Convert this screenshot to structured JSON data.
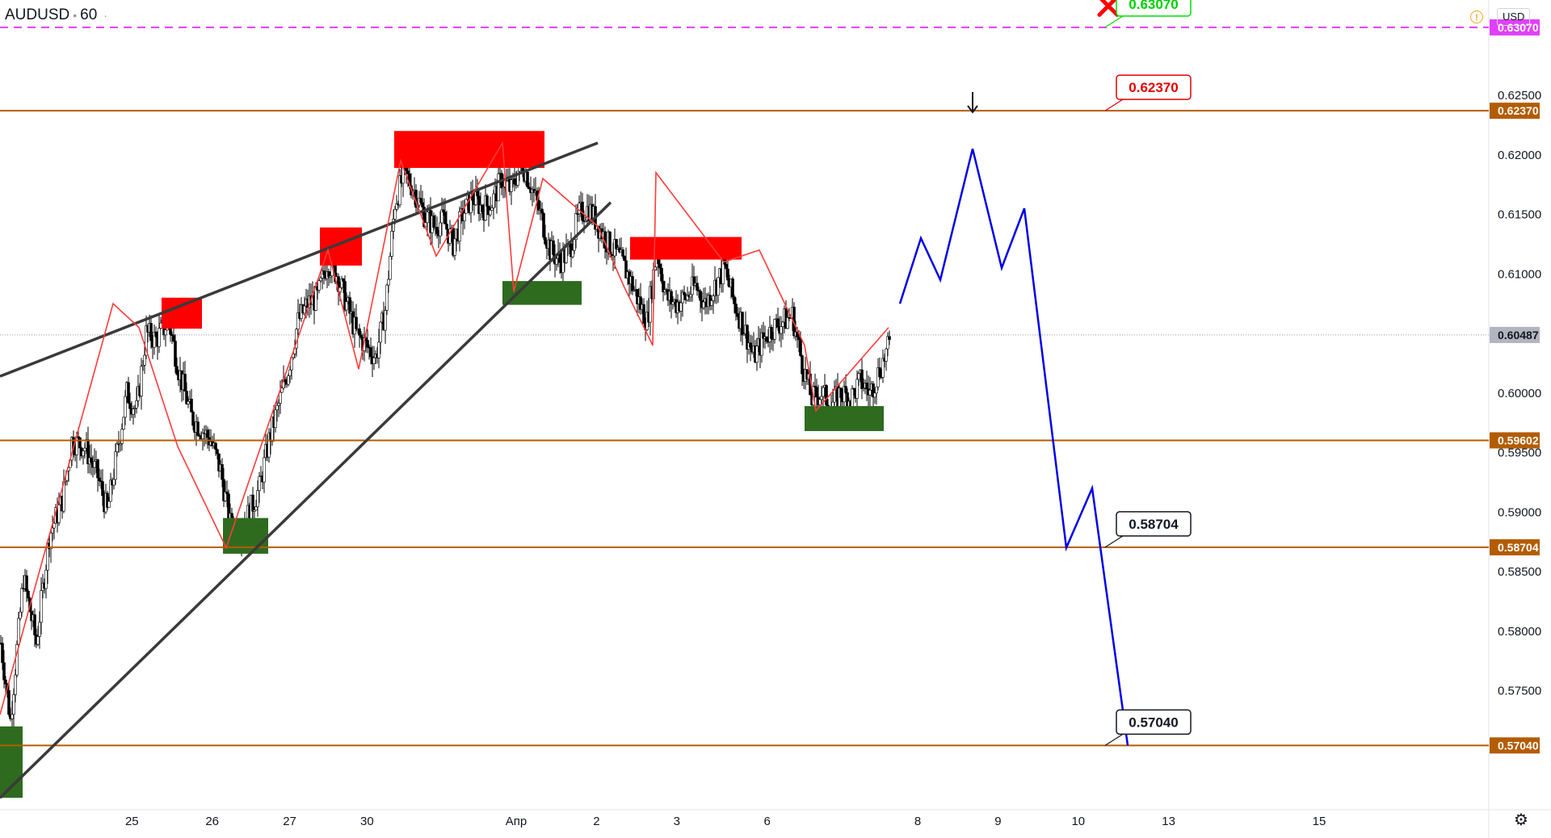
{
  "header": {
    "symbol": "AUDUSD",
    "interval": "60",
    "currency": "USD",
    "warning_icon": "alert-circle-icon",
    "settings_icon": "gear-icon"
  },
  "chart_data": {
    "type": "candlestick",
    "symbol": "AUDUSD",
    "interval": "60",
    "ylim": [
      0.565,
      0.633
    ],
    "y_ticks": [
      "0.57500",
      "0.58000",
      "0.58500",
      "0.59000",
      "0.59500",
      "0.60000",
      "0.61000",
      "0.61500",
      "0.62000",
      "0.62500"
    ],
    "x_ticks": [
      {
        "label": "25",
        "bar": 92
      },
      {
        "label": "26",
        "bar": 148
      },
      {
        "label": "27",
        "bar": 202
      },
      {
        "label": "30",
        "bar": 256
      },
      {
        "label": "Апр",
        "bar": 360
      },
      {
        "label": "2",
        "bar": 416
      },
      {
        "label": "3",
        "bar": 472
      },
      {
        "label": "6",
        "bar": 535
      },
      {
        "label": "8",
        "bar": 640
      },
      {
        "label": "9",
        "bar": 696
      },
      {
        "label": "10",
        "bar": 752
      },
      {
        "label": "13",
        "bar": 815
      },
      {
        "label": "15",
        "bar": 920
      }
    ],
    "current_price": "0.60487",
    "current_price_value": 0.60487,
    "horizontal_levels": [
      {
        "value": 0.6307,
        "label": "0.63070",
        "color": "#e040fb",
        "style": "dashed"
      },
      {
        "value": 0.6237,
        "label": "0.62370",
        "color": "#b35c00",
        "style": "solid"
      },
      {
        "value": 0.59602,
        "label": "0.59602",
        "color": "#b35c00",
        "style": "solid"
      },
      {
        "value": 0.58704,
        "label": "0.58704",
        "color": "#b35c00",
        "style": "solid"
      },
      {
        "value": 0.5704,
        "label": "0.57040",
        "color": "#b35c00",
        "style": "solid"
      }
    ],
    "callouts": [
      {
        "label": "0.63070",
        "value": 0.6307,
        "color": "#00e000",
        "text_color": "#00d000"
      },
      {
        "label": "0.62370",
        "value": 0.6237,
        "color": "#e00000",
        "text_color": "#e00000"
      },
      {
        "label": "0.58704",
        "value": 0.58704,
        "color": "#131722",
        "text_color": "#131722"
      },
      {
        "label": "0.57040",
        "value": 0.5704,
        "color": "#131722",
        "text_color": "#131722"
      }
    ],
    "zigzag": [
      [
        0,
        0.573
      ],
      [
        70,
        0.6075
      ],
      [
        86,
        0.6055
      ],
      [
        110,
        0.5955
      ],
      [
        140,
        0.587
      ],
      [
        203,
        0.612
      ],
      [
        222,
        0.602
      ],
      [
        248,
        0.6195
      ],
      [
        270,
        0.6115
      ],
      [
        311,
        0.621
      ],
      [
        318,
        0.6085
      ],
      [
        336,
        0.618
      ],
      [
        370,
        0.614
      ],
      [
        386,
        0.609
      ],
      [
        404,
        0.604
      ],
      [
        406,
        0.6185
      ],
      [
        448,
        0.611
      ],
      [
        470,
        0.612
      ],
      [
        498,
        0.604
      ],
      [
        505,
        0.5985
      ],
      [
        550,
        0.6055
      ]
    ],
    "forecast_path": [
      [
        557,
        0.6075
      ],
      [
        570,
        0.613
      ],
      [
        582,
        0.6095
      ],
      [
        602,
        0.6205
      ],
      [
        620,
        0.6105
      ],
      [
        634,
        0.6155
      ],
      [
        660,
        0.587
      ],
      [
        676,
        0.592
      ],
      [
        698,
        0.5704
      ]
    ],
    "trendlines": [
      {
        "from": [
          0,
          0.6014
        ],
        "to": [
          370,
          0.621
        ]
      },
      {
        "from": [
          0,
          0.566
        ],
        "to": [
          378,
          0.616
        ]
      }
    ],
    "supply_zones": [
      {
        "bar_from": 100,
        "bar_to": 125,
        "low": 0.6054,
        "high": 0.608
      },
      {
        "bar_from": 198,
        "bar_to": 224,
        "low": 0.6107,
        "high": 0.6139
      },
      {
        "bar_from": 244,
        "bar_to": 337,
        "low": 0.6189,
        "high": 0.622
      },
      {
        "bar_from": 390,
        "bar_to": 459,
        "low": 0.6112,
        "high": 0.6131
      }
    ],
    "demand_zones": [
      {
        "bar_from": 0,
        "bar_to": 14,
        "low": 0.566,
        "high": 0.572
      },
      {
        "bar_from": 138,
        "bar_to": 166,
        "low": 0.5865,
        "high": 0.5895
      },
      {
        "bar_from": 311,
        "bar_to": 360,
        "low": 0.6074,
        "high": 0.6094
      },
      {
        "bar_from": 498,
        "bar_to": 547,
        "low": 0.5968,
        "high": 0.5989
      }
    ],
    "markers": [
      {
        "type": "x",
        "bar": 686,
        "value": 0.6325,
        "color": "#ff0000"
      },
      {
        "type": "arrow-down",
        "bar": 602,
        "value": 0.625,
        "color": "#131722"
      }
    ],
    "candle_path": [
      [
        0,
        0.579
      ],
      [
        6,
        0.5725
      ],
      [
        14,
        0.5845
      ],
      [
        22,
        0.579
      ],
      [
        30,
        0.588
      ],
      [
        38,
        0.591
      ],
      [
        44,
        0.596
      ],
      [
        52,
        0.5955
      ],
      [
        60,
        0.593
      ],
      [
        66,
        0.59
      ],
      [
        72,
        0.595
      ],
      [
        78,
        0.6
      ],
      [
        84,
        0.5985
      ],
      [
        90,
        0.605
      ],
      [
        96,
        0.6045
      ],
      [
        104,
        0.606
      ],
      [
        110,
        0.602
      ],
      [
        118,
        0.598
      ],
      [
        124,
        0.597
      ],
      [
        130,
        0.596
      ],
      [
        136,
        0.5935
      ],
      [
        142,
        0.589
      ],
      [
        148,
        0.5885
      ],
      [
        154,
        0.59
      ],
      [
        160,
        0.592
      ],
      [
        166,
        0.596
      ],
      [
        172,
        0.599
      ],
      [
        178,
        0.602
      ],
      [
        184,
        0.606
      ],
      [
        190,
        0.6075
      ],
      [
        196,
        0.608
      ],
      [
        202,
        0.611
      ],
      [
        208,
        0.61
      ],
      [
        214,
        0.6075
      ],
      [
        220,
        0.605
      ],
      [
        226,
        0.604
      ],
      [
        232,
        0.603
      ],
      [
        238,
        0.607
      ],
      [
        244,
        0.616
      ],
      [
        250,
        0.6185
      ],
      [
        256,
        0.617
      ],
      [
        262,
        0.615
      ],
      [
        268,
        0.614
      ],
      [
        274,
        0.6145
      ],
      [
        280,
        0.6125
      ],
      [
        286,
        0.615
      ],
      [
        292,
        0.6165
      ],
      [
        298,
        0.6155
      ],
      [
        304,
        0.616
      ],
      [
        310,
        0.618
      ],
      [
        316,
        0.617
      ],
      [
        322,
        0.6195
      ],
      [
        328,
        0.6175
      ],
      [
        334,
        0.615
      ],
      [
        340,
        0.612
      ],
      [
        346,
        0.611
      ],
      [
        352,
        0.612
      ],
      [
        358,
        0.615
      ],
      [
        364,
        0.6155
      ],
      [
        370,
        0.614
      ],
      [
        376,
        0.6125
      ],
      [
        382,
        0.6115
      ],
      [
        388,
        0.61
      ],
      [
        394,
        0.608
      ],
      [
        400,
        0.606
      ],
      [
        406,
        0.612
      ],
      [
        412,
        0.608
      ],
      [
        418,
        0.6075
      ],
      [
        424,
        0.608
      ],
      [
        430,
        0.609
      ],
      [
        436,
        0.6075
      ],
      [
        442,
        0.609
      ],
      [
        448,
        0.6105
      ],
      [
        454,
        0.6075
      ],
      [
        460,
        0.6055
      ],
      [
        466,
        0.603
      ],
      [
        472,
        0.6045
      ],
      [
        478,
        0.6055
      ],
      [
        484,
        0.606
      ],
      [
        490,
        0.6065
      ],
      [
        496,
        0.6025
      ],
      [
        502,
        0.5995
      ],
      [
        508,
        0.6
      ],
      [
        514,
        0.599
      ],
      [
        520,
        0.6
      ],
      [
        526,
        0.5995
      ],
      [
        532,
        0.601
      ],
      [
        538,
        0.6
      ],
      [
        544,
        0.602
      ],
      [
        550,
        0.604
      ]
    ]
  }
}
